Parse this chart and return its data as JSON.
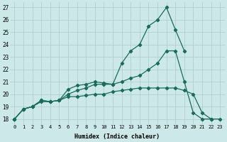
{
  "xlabel": "Humidex (Indice chaleur)",
  "bg_color": "#cce8e8",
  "grid_color": "#aacccc",
  "line_color": "#1a6b5a",
  "xlim": [
    -0.5,
    23.5
  ],
  "ylim": [
    17.6,
    27.4
  ],
  "xticks": [
    0,
    1,
    2,
    3,
    4,
    5,
    6,
    7,
    8,
    9,
    10,
    11,
    12,
    13,
    14,
    15,
    16,
    17,
    18,
    19,
    20,
    21,
    22,
    23
  ],
  "yticks": [
    18,
    19,
    20,
    21,
    22,
    23,
    24,
    25,
    26,
    27
  ],
  "line1_y": [
    18.0,
    18.8,
    19.0,
    19.5,
    19.4,
    19.5,
    20.4,
    20.7,
    20.8,
    21.0,
    20.9,
    20.8,
    22.5,
    23.5,
    24.0,
    25.5,
    26.0,
    27.0,
    25.2,
    23.5,
    null,
    null,
    null,
    null
  ],
  "line2_y": [
    18.0,
    18.8,
    19.0,
    19.5,
    19.4,
    19.5,
    20.0,
    20.3,
    20.5,
    20.8,
    20.8,
    20.8,
    21.0,
    21.3,
    21.5,
    22.0,
    22.5,
    23.5,
    23.5,
    21.0,
    18.5,
    18.0,
    18.0,
    null
  ],
  "line3_y": [
    18.0,
    18.8,
    19.0,
    19.4,
    19.4,
    19.5,
    19.8,
    19.8,
    19.9,
    20.0,
    20.0,
    20.2,
    20.3,
    20.4,
    20.5,
    20.5,
    20.5,
    20.5,
    20.5,
    20.3,
    20.0,
    18.5,
    18.0,
    18.0
  ]
}
